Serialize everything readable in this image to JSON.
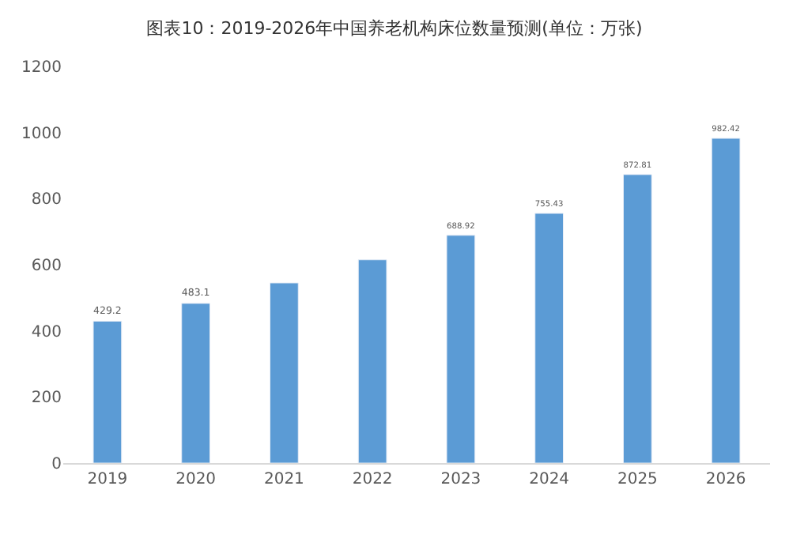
{
  "chart_data": {
    "type": "bar",
    "title": "图表10：2019-2026年中国养老机构床位数量预测(单位：万张)",
    "categories": [
      "2019",
      "2020",
      "2021",
      "2022",
      "2023",
      "2024",
      "2025",
      "2026"
    ],
    "values": [
      429.2,
      483.1,
      545,
      615,
      688.92,
      755.43,
      872.81,
      982.42
    ],
    "value_labels": [
      "429.2",
      "483.1",
      null,
      null,
      "688.92",
      "755.43",
      "872.81",
      "982.42"
    ],
    "color": "#5b9bd5",
    "ylim": [
      0,
      1200
    ],
    "yticks": [
      0,
      200,
      400,
      600,
      800,
      1000,
      1200
    ]
  }
}
